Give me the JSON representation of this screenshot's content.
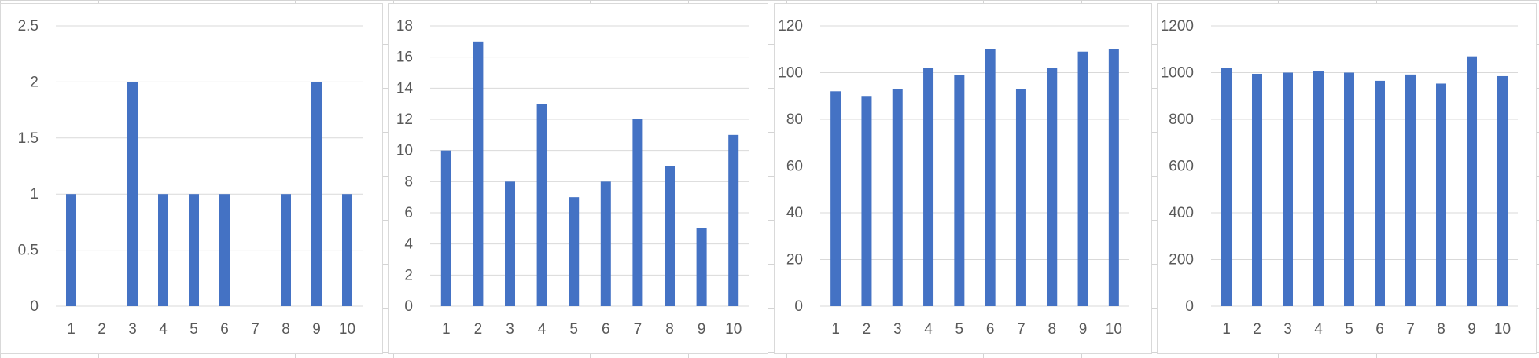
{
  "chart_data": [
    {
      "type": "bar",
      "categories": [
        "1",
        "2",
        "3",
        "4",
        "5",
        "6",
        "7",
        "8",
        "9",
        "10"
      ],
      "values": [
        1,
        0,
        2,
        1,
        1,
        1,
        0,
        1,
        2,
        1
      ],
      "yticks": [
        "0",
        "0.5",
        "1",
        "1.5",
        "2",
        "2.5"
      ],
      "ylim": [
        0,
        2.5
      ],
      "bar_color": "#4472c4",
      "grid": true,
      "legend": "none",
      "title": "",
      "xlabel": "",
      "ylabel": ""
    },
    {
      "type": "bar",
      "categories": [
        "1",
        "2",
        "3",
        "4",
        "5",
        "6",
        "7",
        "8",
        "9",
        "10"
      ],
      "values": [
        10,
        17,
        8,
        13,
        7,
        8,
        12,
        9,
        5,
        11
      ],
      "yticks": [
        "0",
        "2",
        "4",
        "6",
        "8",
        "10",
        "12",
        "14",
        "16",
        "18"
      ],
      "ylim": [
        0,
        18
      ],
      "bar_color": "#4472c4",
      "grid": true,
      "legend": "none",
      "title": "",
      "xlabel": "",
      "ylabel": ""
    },
    {
      "type": "bar",
      "categories": [
        "1",
        "2",
        "3",
        "4",
        "5",
        "6",
        "7",
        "8",
        "9",
        "10"
      ],
      "values": [
        92,
        90,
        93,
        102,
        99,
        110,
        93,
        102,
        109,
        110
      ],
      "yticks": [
        "0",
        "20",
        "40",
        "60",
        "80",
        "100",
        "120"
      ],
      "ylim": [
        0,
        120
      ],
      "bar_color": "#4472c4",
      "grid": true,
      "legend": "none",
      "title": "",
      "xlabel": "",
      "ylabel": ""
    },
    {
      "type": "bar",
      "categories": [
        "1",
        "2",
        "3",
        "4",
        "5",
        "6",
        "7",
        "8",
        "9",
        "10"
      ],
      "values": [
        1020,
        995,
        1000,
        1005,
        1000,
        965,
        992,
        953,
        1070,
        985
      ],
      "yticks": [
        "0",
        "200",
        "400",
        "600",
        "800",
        "1000",
        "1200"
      ],
      "ylim": [
        0,
        1200
      ],
      "bar_color": "#4472c4",
      "grid": true,
      "legend": "none",
      "title": "",
      "xlabel": "",
      "ylabel": ""
    }
  ]
}
